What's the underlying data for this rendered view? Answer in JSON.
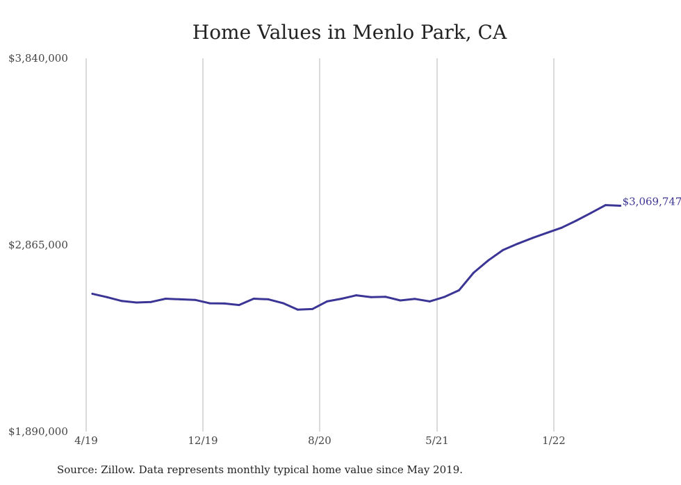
{
  "chart_data": {
    "type": "line",
    "title": "Home Values in Menlo Park, CA",
    "xlabel": "",
    "ylabel": "",
    "ylim": [
      1890000,
      3840000
    ],
    "y_ticks": [
      "$3,840,000",
      "$2,865,000",
      "$1,890,000"
    ],
    "x_ticks": [
      "4/19",
      "12/19",
      "8/20",
      "5/21",
      "1/22"
    ],
    "grid": "vertical",
    "line_color": "#3b3596",
    "series": [
      {
        "values": [
          2610000,
          2592000,
          2572000,
          2564000,
          2567000,
          2584000,
          2581000,
          2578000,
          2560000,
          2559000,
          2551000,
          2584000,
          2581000,
          2561000,
          2527000,
          2530000,
          2570000,
          2584000,
          2602000,
          2592000,
          2594000,
          2575000,
          2583000,
          2570000,
          2593000,
          2628000,
          2720000,
          2784000,
          2838000,
          2871000,
          2901000,
          2928000,
          2955000,
          2992000,
          3032000,
          3073000,
          3069747
        ]
      }
    ],
    "end_label": "$3,069,747",
    "source": "Source: Zillow. Data represents monthly typical home value since May 2019."
  }
}
